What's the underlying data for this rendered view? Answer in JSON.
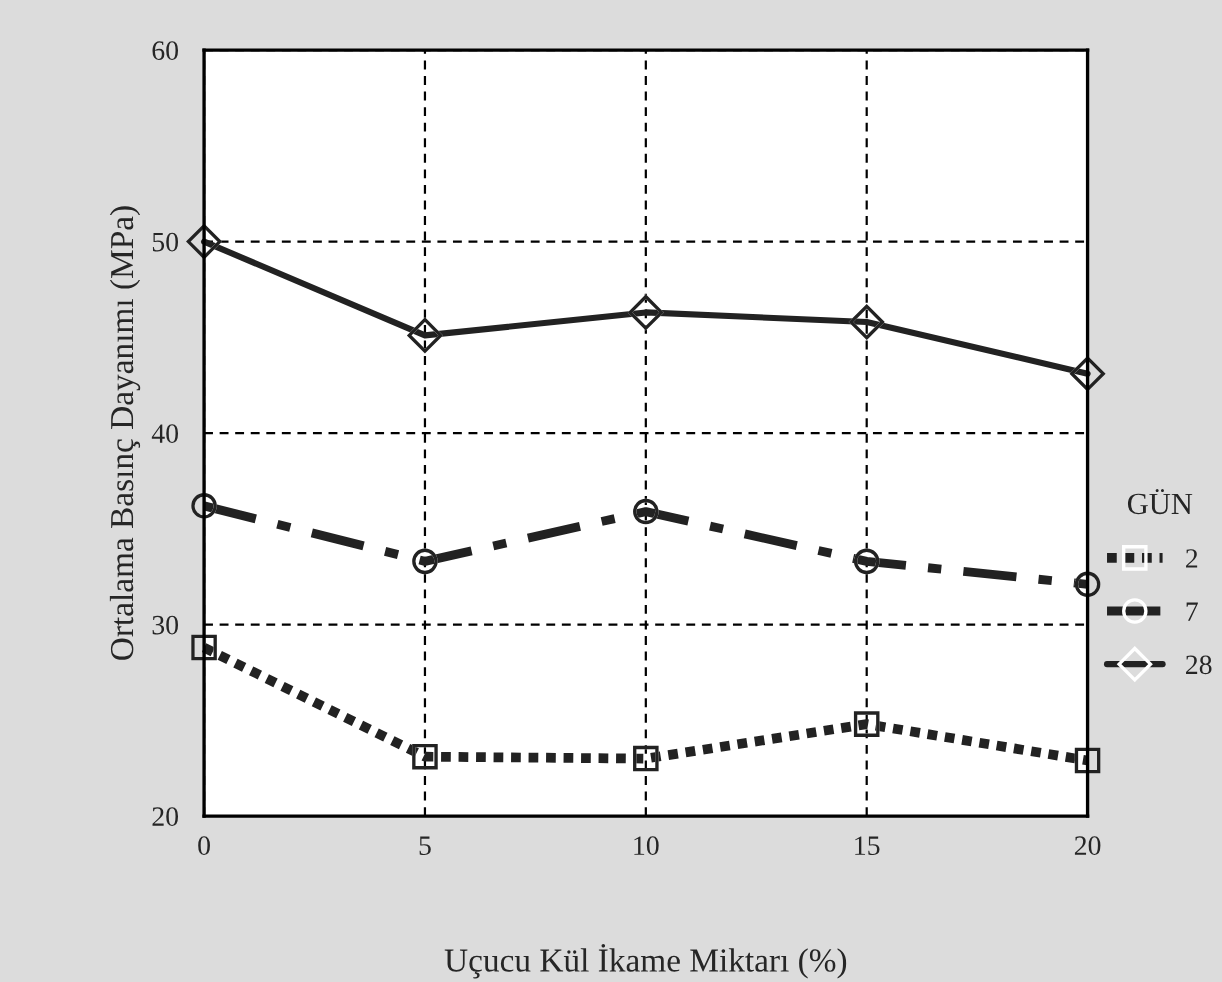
{
  "chart_data": {
    "type": "line",
    "xlabel": "Uçucu Kül İkame Miktarı (%)",
    "ylabel": "Ortalama Basınç Dayanımı (MPa)",
    "legend_title": "GÜN",
    "legend": "right",
    "x": [
      0,
      5,
      10,
      15,
      20
    ],
    "series": [
      {
        "name": "2",
        "color": "#222222",
        "marker": "square",
        "line_style": "dotted",
        "values": [
          28.8,
          23.1,
          23.0,
          24.8,
          22.9
        ]
      },
      {
        "name": "7",
        "color": "#222222",
        "marker": "circle",
        "line_style": "dashed",
        "values": [
          36.2,
          33.3,
          35.9,
          33.3,
          32.1
        ]
      },
      {
        "name": "28",
        "color": "#222222",
        "marker": "diamond",
        "line_style": "solid",
        "values": [
          50.0,
          45.1,
          46.3,
          45.8,
          43.1
        ]
      }
    ],
    "xlim": [
      0,
      20
    ],
    "xticks": [
      0,
      5,
      10,
      15,
      20
    ],
    "ylim": [
      20,
      60
    ],
    "yticks": [
      20,
      30,
      40,
      50,
      60
    ],
    "grid": true
  }
}
